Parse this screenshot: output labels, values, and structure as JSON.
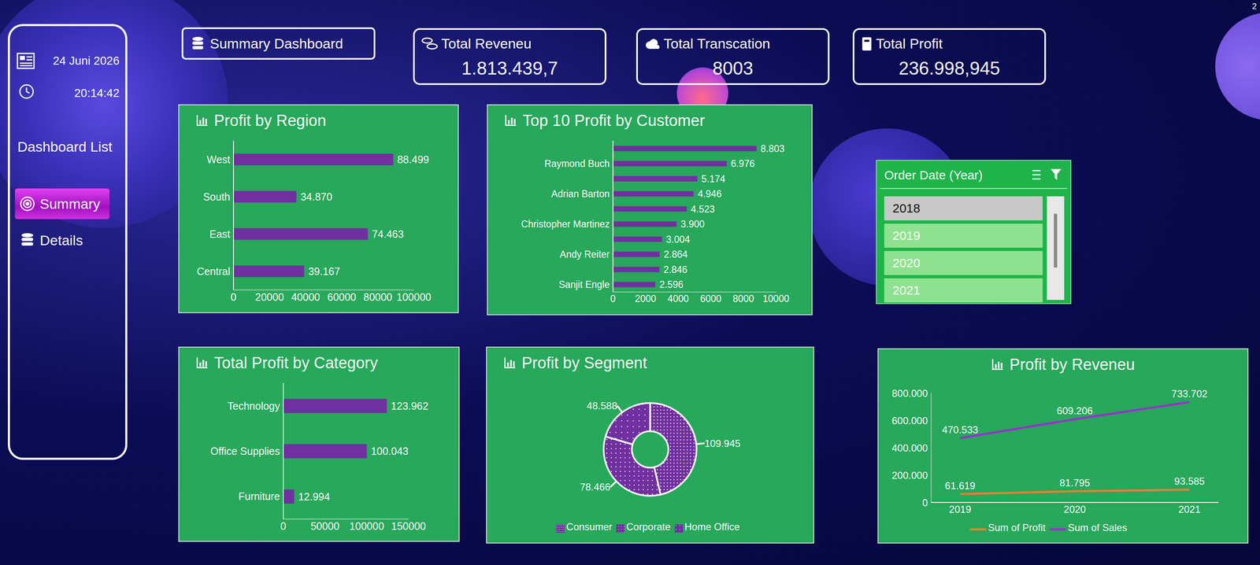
{
  "header": {
    "title": "Summary Dashboard",
    "corner_text": "2"
  },
  "sidebar": {
    "date": "24 Juni 2026",
    "time": "20:14:42",
    "heading": "Dashboard List",
    "items": [
      "Summary",
      "Details"
    ],
    "active": "Summary"
  },
  "kpis": [
    {
      "label": "Total Reveneu",
      "value": "1.813.439,7"
    },
    {
      "label": "Total Transcation",
      "value": "8003"
    },
    {
      "label": "Total Profit",
      "value": "236.998,945"
    }
  ],
  "slicer": {
    "title": "Order Date (Year)",
    "items": [
      "2018",
      "2019",
      "2020",
      "2021"
    ],
    "selected": "2018"
  },
  "chart_data": [
    {
      "type": "bar",
      "title": "Profit by Region",
      "orientation": "horizontal",
      "categories": [
        "West",
        "South",
        "East",
        "Central"
      ],
      "values": [
        88499,
        34870,
        74463,
        39167
      ],
      "value_labels": [
        "88.499",
        "34.870",
        "74.463",
        "39.167"
      ],
      "color": "#7030a0",
      "xlim": [
        0,
        100000
      ],
      "xticks": [
        0,
        20000,
        40000,
        60000,
        80000,
        100000
      ],
      "data_labels": true,
      "grid": false
    },
    {
      "type": "bar",
      "title": "Top 10 Profit by Customer",
      "orientation": "horizontal",
      "categories": [
        null,
        "Raymond Buch",
        null,
        "Adrian Barton",
        null,
        "Christopher Martinez",
        null,
        "Andy Reiter",
        null,
        "Sanjit Engle"
      ],
      "values": [
        8803,
        6976,
        5174,
        4946,
        4523,
        3900,
        3004,
        2864,
        2846,
        2596
      ],
      "value_labels": [
        "8.803",
        "6.976",
        "5.174",
        "4.946",
        "4.523",
        "3.900",
        "3.004",
        "2.864",
        "2.846",
        "2.596"
      ],
      "color": "#7030a0",
      "xlim": [
        0,
        10000
      ],
      "xticks": [
        0,
        2000,
        4000,
        6000,
        8000,
        10000
      ],
      "data_labels": true,
      "grid": false
    },
    {
      "type": "bar",
      "title": "Total Profit by Category",
      "orientation": "horizontal",
      "categories": [
        "Technology",
        "Office Supplies",
        "Furniture"
      ],
      "values": [
        123962,
        100043,
        12994
      ],
      "value_labels": [
        "123.962",
        "100.043",
        "12.994"
      ],
      "color": "#7030a0",
      "xlim": [
        0,
        150000
      ],
      "xticks": [
        0,
        50000,
        100000,
        150000
      ],
      "data_labels": true,
      "grid": false
    },
    {
      "type": "pie",
      "title": "Profit by Segment",
      "categories": [
        "Consumer",
        "Corporate",
        "Home Office"
      ],
      "values": [
        109945,
        78466,
        48588
      ],
      "value_labels": [
        "109.945",
        "78.466",
        "48.588"
      ],
      "colors": [
        "#7030a0",
        "#7030a0",
        "#7030a0"
      ],
      "legend": "bottom",
      "data_labels": true
    },
    {
      "type": "line",
      "title": "Profit by Reveneu",
      "categories": [
        "2019",
        "2020",
        "2021"
      ],
      "series": [
        {
          "name": "Sum of Profit",
          "color": "#ed7d31",
          "values": [
            61619,
            81795,
            93585
          ],
          "value_labels": [
            "61.619",
            "81.795",
            "93.585"
          ]
        },
        {
          "name": "Sum of Sales",
          "color": "#9b30d0",
          "values": [
            470533,
            609206,
            733702
          ],
          "value_labels": [
            "470.533",
            "609.206",
            "733.702"
          ]
        }
      ],
      "ylim": [
        0,
        800000
      ],
      "yticks": [
        0,
        {
          "value": 200000,
          "label": "200.000"
        },
        {
          "value": 400000,
          "label": "400.000"
        },
        {
          "value": 600000,
          "label": "600.000"
        },
        {
          "value": 800000,
          "label": "800.000"
        }
      ],
      "legend": "bottom",
      "data_labels": true,
      "marker": "none",
      "grid": false
    }
  ]
}
